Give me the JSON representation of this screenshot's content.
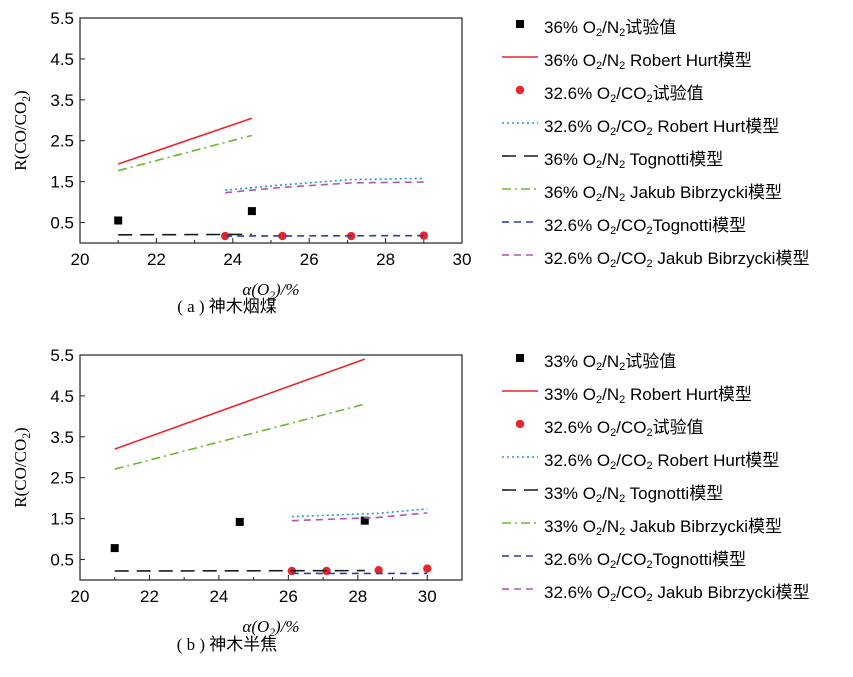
{
  "chart_data": [
    {
      "type": "scatter",
      "panel_caption": "( a ) 神木烟煤",
      "xlabel": "α(O₂)/%",
      "ylabel": "R(CO/CO₂)",
      "xlim": [
        20,
        30
      ],
      "ylim": [
        0,
        5.5
      ],
      "xticks": [
        "20",
        "22",
        "24",
        "26",
        "28",
        "30"
      ],
      "yticks": [
        "0.5",
        "1.5",
        "2.5",
        "3.5",
        "4.5",
        "5.5"
      ],
      "grid": false,
      "legend_position": "right",
      "series": [
        {
          "name": "36% O₂/N₂试验值",
          "kind": "marker",
          "marker": "square",
          "color": "#000000",
          "x": [
            21,
            24.5
          ],
          "y": [
            0.55,
            0.78
          ]
        },
        {
          "name": "36% O₂/N₂ Robert Hurt模型",
          "kind": "line",
          "dash": "solid",
          "color": "#e8262a",
          "x": [
            21,
            24.5
          ],
          "y": [
            1.93,
            3.05
          ]
        },
        {
          "name": "32.6% O₂/CO₂试验值",
          "kind": "marker",
          "marker": "circle",
          "color": "#e8262a",
          "x": [
            23.8,
            25.3,
            27.1,
            29
          ],
          "y": [
            0.17,
            0.17,
            0.17,
            0.18
          ]
        },
        {
          "name": "32.6% O₂/CO₂ Robert Hurt模型",
          "kind": "line",
          "dash": "dot",
          "color": "#1f9ad6",
          "x": [
            23.8,
            25.3,
            27.1,
            29
          ],
          "y": [
            1.29,
            1.42,
            1.55,
            1.58
          ]
        },
        {
          "name": "36% O₂/N₂ Tognotti模型",
          "kind": "line",
          "dash": "longdash",
          "color": "#1a1a1a",
          "x": [
            21,
            24.5
          ],
          "y": [
            0.2,
            0.21
          ]
        },
        {
          "name": "36% O₂/N₂ Jakub Bibrzycki模型",
          "kind": "line",
          "dash": "dashdot",
          "color": "#6ab82e",
          "x": [
            21,
            24.5
          ],
          "y": [
            1.77,
            2.63
          ]
        },
        {
          "name": "32.6% O₂/CO₂Tognotti模型",
          "kind": "line",
          "dash": "dash",
          "color": "#2a3fa0",
          "x": [
            23.8,
            29
          ],
          "y": [
            0.17,
            0.18
          ]
        },
        {
          "name": "32.6% O₂/CO₂ Jakub Bibrzycki模型",
          "kind": "line",
          "dash": "dash",
          "color": "#b256b4",
          "x": [
            23.8,
            25.3,
            27.1,
            29
          ],
          "y": [
            1.23,
            1.36,
            1.47,
            1.49
          ]
        }
      ]
    },
    {
      "type": "scatter",
      "panel_caption": "( b ) 神木半焦",
      "xlabel": "α(O₂)/%",
      "ylabel": "R(CO/CO₂)",
      "xlim": [
        20,
        31
      ],
      "ylim": [
        0,
        5.5
      ],
      "xticks": [
        "20",
        "22",
        "24",
        "26",
        "28",
        "30"
      ],
      "yticks": [
        "0.5",
        "1.5",
        "2.5",
        "3.5",
        "4.5",
        "5.5"
      ],
      "grid": false,
      "legend_position": "right",
      "series": [
        {
          "name": "33% O₂/N₂试验值",
          "kind": "marker",
          "marker": "square",
          "color": "#000000",
          "x": [
            21,
            24.6,
            28.2
          ],
          "y": [
            0.78,
            1.42,
            1.45
          ]
        },
        {
          "name": "33% O₂/N₂ Robert Hurt模型",
          "kind": "line",
          "dash": "solid",
          "color": "#e8262a",
          "x": [
            21,
            28.2
          ],
          "y": [
            3.2,
            5.4
          ]
        },
        {
          "name": "32.6% O₂/CO₂试验值",
          "kind": "marker",
          "marker": "circle",
          "color": "#e8262a",
          "x": [
            26.1,
            27.1,
            28.6,
            30
          ],
          "y": [
            0.22,
            0.22,
            0.24,
            0.28
          ]
        },
        {
          "name": "32.6% O₂/CO₂ Robert Hurt模型",
          "kind": "line",
          "dash": "dot",
          "color": "#1f9ad6",
          "x": [
            26.1,
            28.6,
            30
          ],
          "y": [
            1.55,
            1.63,
            1.74
          ]
        },
        {
          "name": "33% O₂/N₂ Tognotti模型",
          "kind": "line",
          "dash": "longdash",
          "color": "#1a1a1a",
          "x": [
            21,
            28.2
          ],
          "y": [
            0.22,
            0.23
          ]
        },
        {
          "name": "33% O₂/N₂ Jakub Bibrzycki模型",
          "kind": "line",
          "dash": "dashdot",
          "color": "#6ab82e",
          "x": [
            21,
            28.2
          ],
          "y": [
            2.71,
            4.3
          ]
        },
        {
          "name": "32.6% O₂/CO₂Tognotti模型",
          "kind": "line",
          "dash": "dash",
          "color": "#2a3fa0",
          "x": [
            26.1,
            30
          ],
          "y": [
            0.16,
            0.16
          ]
        },
        {
          "name": "32.6% O₂/CO₂ Jakub Bibrzycki模型",
          "kind": "line",
          "dash": "dash",
          "color": "#b256b4",
          "x": [
            26.1,
            28.6,
            30
          ],
          "y": [
            1.45,
            1.53,
            1.64
          ]
        }
      ]
    }
  ]
}
